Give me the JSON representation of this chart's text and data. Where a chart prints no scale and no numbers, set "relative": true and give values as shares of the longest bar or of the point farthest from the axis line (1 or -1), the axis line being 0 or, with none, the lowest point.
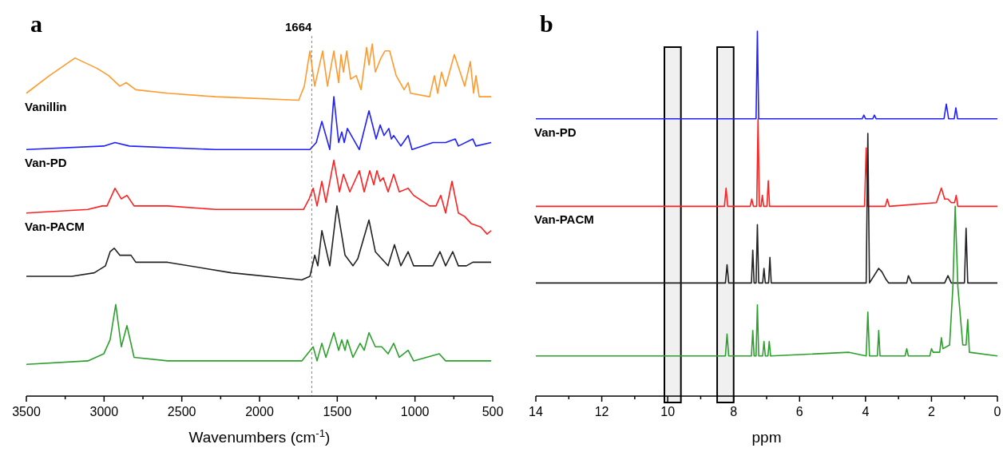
{
  "chart_data": [
    {
      "type": "line",
      "title": "a",
      "xlabel": "Wavenumbers (cm$^{-1}$)",
      "relative": true,
      "tick_labels": "x",
      "xlim": [
        3500,
        500
      ],
      "xticks": [
        3500,
        {
          "value": 3250,
          "label": null
        },
        3000,
        {
          "value": 2750,
          "label": null
        },
        2500,
        {
          "value": 2250,
          "label": null
        },
        2000,
        {
          "value": 1750,
          "label": null
        },
        1500,
        {
          "value": 1250,
          "label": null
        },
        1000,
        {
          "value": 750,
          "label": null
        },
        500
      ],
      "ref_lines": [
        {
          "axis": "x",
          "value": 1664,
          "label": "1664",
          "color": "#808080",
          "line_style": "dashed"
        }
      ],
      "series": [
        {
          "name": "Vanillin",
          "color": "#ff9a2e",
          "x": [
            3500,
            3351,
            3187,
            3043,
            2971,
            2899,
            2858,
            2796,
            2591,
            2283,
            1748,
            1712,
            1676,
            1645,
            1594,
            1563,
            1522,
            1491,
            1476,
            1460,
            1439,
            1414,
            1378,
            1347,
            1311,
            1296,
            1275,
            1255,
            1219,
            1193,
            1163,
            1121,
            1070,
            1044,
            1029,
            906,
            875,
            854,
            829,
            803,
            747,
            680,
            644,
            623,
            608,
            587,
            510
          ],
          "values": [
            0.86,
            0.91,
            0.96,
            0.93,
            0.91,
            0.88,
            0.89,
            0.87,
            0.86,
            0.85,
            0.84,
            0.88,
            0.98,
            0.88,
            0.98,
            0.88,
            0.98,
            0.89,
            0.97,
            0.92,
            0.98,
            0.9,
            0.91,
            0.87,
            0.99,
            0.94,
            1.0,
            0.92,
            0.96,
            0.98,
            0.98,
            0.91,
            0.87,
            0.89,
            0.86,
            0.85,
            0.91,
            0.86,
            0.92,
            0.88,
            0.97,
            0.88,
            0.95,
            0.86,
            0.91,
            0.85,
            0.85
          ]
        },
        {
          "name": "Van-PD",
          "color": "#1f1fff",
          "x": [
            3500,
            3002,
            2930,
            2837,
            2283,
            1676,
            1635,
            1599,
            1548,
            1522,
            1491,
            1471,
            1455,
            1435,
            1358,
            1296,
            1250,
            1224,
            1199,
            1168,
            1152,
            1137,
            1091,
            1044,
            1019,
            885,
            803,
            741,
            721,
            628,
            608,
            510
          ],
          "values": [
            0.7,
            0.71,
            0.72,
            0.71,
            0.7,
            0.7,
            0.72,
            0.78,
            0.7,
            0.85,
            0.72,
            0.75,
            0.72,
            0.76,
            0.7,
            0.81,
            0.73,
            0.77,
            0.74,
            0.76,
            0.73,
            0.74,
            0.71,
            0.74,
            0.7,
            0.72,
            0.72,
            0.73,
            0.71,
            0.73,
            0.71,
            0.72
          ]
        },
        {
          "name": "Van-PACM",
          "color": "#ff2020",
          "x": [
            3500,
            3104,
            3012,
            2981,
            2930,
            2889,
            2853,
            2807,
            2591,
            2283,
            1717,
            1681,
            1655,
            1630,
            1599,
            1573,
            1522,
            1486,
            1460,
            1419,
            1358,
            1327,
            1291,
            1265,
            1245,
            1224,
            1204,
            1173,
            1137,
            1101,
            1044,
            1009,
            906,
            865,
            834,
            803,
            762,
            721,
            680,
            639,
            577,
            536,
            510
          ],
          "values": [
            0.52,
            0.53,
            0.54,
            0.54,
            0.59,
            0.56,
            0.57,
            0.54,
            0.54,
            0.53,
            0.53,
            0.56,
            0.59,
            0.54,
            0.61,
            0.55,
            0.67,
            0.58,
            0.63,
            0.58,
            0.64,
            0.58,
            0.64,
            0.6,
            0.64,
            0.61,
            0.62,
            0.58,
            0.63,
            0.58,
            0.59,
            0.57,
            0.54,
            0.54,
            0.57,
            0.52,
            0.61,
            0.52,
            0.51,
            0.49,
            0.48,
            0.46,
            0.47
          ]
        },
        {
          "color": "#222222",
          "x": [
            3500,
            3207,
            3063,
            2991,
            2961,
            2935,
            2899,
            2827,
            2796,
            2591,
            2180,
            1728,
            1676,
            1645,
            1625,
            1599,
            1548,
            1502,
            1450,
            1399,
            1368,
            1296,
            1255,
            1214,
            1173,
            1132,
            1091,
            1044,
            1009,
            885,
            839,
            803,
            757,
            721,
            669,
            628,
            510
          ],
          "values": [
            0.34,
            0.34,
            0.35,
            0.37,
            0.41,
            0.42,
            0.4,
            0.4,
            0.38,
            0.38,
            0.35,
            0.33,
            0.34,
            0.4,
            0.37,
            0.47,
            0.37,
            0.54,
            0.4,
            0.37,
            0.39,
            0.5,
            0.41,
            0.39,
            0.37,
            0.43,
            0.37,
            0.41,
            0.37,
            0.37,
            0.41,
            0.37,
            0.41,
            0.37,
            0.37,
            0.38,
            0.38
          ]
        },
        {
          "color": "#2ca02c",
          "x": [
            3500,
            3104,
            3002,
            2961,
            2925,
            2889,
            2853,
            2807,
            2591,
            2078,
            1728,
            1655,
            1630,
            1599,
            1573,
            1522,
            1491,
            1471,
            1450,
            1435,
            1399,
            1353,
            1327,
            1296,
            1255,
            1214,
            1173,
            1137,
            1101,
            1044,
            1009,
            844,
            803,
            510
          ],
          "values": [
            0.09,
            0.1,
            0.12,
            0.16,
            0.26,
            0.14,
            0.2,
            0.11,
            0.1,
            0.1,
            0.1,
            0.14,
            0.1,
            0.15,
            0.11,
            0.18,
            0.13,
            0.16,
            0.13,
            0.16,
            0.11,
            0.15,
            0.13,
            0.18,
            0.14,
            0.14,
            0.12,
            0.15,
            0.11,
            0.13,
            0.1,
            0.12,
            0.1,
            0.1
          ]
        }
      ]
    },
    {
      "type": "line",
      "title": "b",
      "xlabel": "ppm",
      "relative": true,
      "tick_labels": "x",
      "xlim": [
        14,
        0
      ],
      "xticks": [
        14,
        {
          "value": 13,
          "label": null
        },
        12,
        {
          "value": 11,
          "label": null
        },
        10,
        {
          "value": 9,
          "label": null
        },
        8,
        {
          "value": 7,
          "label": null
        },
        6,
        {
          "value": 5,
          "label": null
        },
        4,
        {
          "value": 3,
          "label": null
        },
        2,
        {
          "value": 1,
          "label": null
        },
        0
      ],
      "bands": [
        {
          "axis": "x",
          "from": 10.1,
          "to": 9.6,
          "color": "#000000"
        },
        {
          "axis": "x",
          "from": 8.5,
          "to": 8.0,
          "color": "#000000"
        }
      ],
      "series": [
        {
          "name": "Van-PD",
          "color": "#1f1fff",
          "x": [
            14,
            7.32,
            7.28,
            7.24,
            4.1,
            4.05,
            4.0,
            3.78,
            3.73,
            3.68,
            1.62,
            1.55,
            1.48,
            1.31,
            1.26,
            1.21,
            0
          ],
          "values": [
            0.76,
            0.76,
            1.0,
            0.76,
            0.76,
            0.77,
            0.76,
            0.76,
            0.77,
            0.76,
            0.76,
            0.8,
            0.76,
            0.76,
            0.79,
            0.76,
            0.76
          ]
        },
        {
          "name": "Van-PACM",
          "color": "#ff2020",
          "x": [
            14,
            8.28,
            8.23,
            8.18,
            7.5,
            7.45,
            7.4,
            7.3,
            7.26,
            7.22,
            7.17,
            7.13,
            7.09,
            6.99,
            6.95,
            6.91,
            4.03,
            3.98,
            3.93,
            3.4,
            3.34,
            3.28,
            1.85,
            1.7,
            1.6,
            1.5,
            1.4,
            1.3,
            1.25,
            1.2,
            0
          ],
          "values": [
            0.52,
            0.52,
            0.57,
            0.52,
            0.52,
            0.54,
            0.52,
            0.52,
            0.76,
            0.52,
            0.52,
            0.55,
            0.52,
            0.52,
            0.59,
            0.52,
            0.52,
            0.68,
            0.52,
            0.52,
            0.54,
            0.52,
            0.53,
            0.57,
            0.54,
            0.54,
            0.53,
            0.53,
            0.55,
            0.52,
            0.52
          ]
        },
        {
          "color": "#222222",
          "x": [
            14,
            8.25,
            8.2,
            8.15,
            7.46,
            7.42,
            7.38,
            7.32,
            7.28,
            7.24,
            7.12,
            7.08,
            7.04,
            6.94,
            6.9,
            6.86,
            3.98,
            3.93,
            3.88,
            3.6,
            3.5,
            3.38,
            3.3,
            2.75,
            2.7,
            2.6,
            1.6,
            1.5,
            1.4,
            1.0,
            0.95,
            0.9,
            0
          ],
          "values": [
            0.31,
            0.31,
            0.36,
            0.31,
            0.31,
            0.4,
            0.31,
            0.31,
            0.47,
            0.31,
            0.31,
            0.35,
            0.31,
            0.31,
            0.38,
            0.31,
            0.31,
            0.72,
            0.31,
            0.35,
            0.34,
            0.32,
            0.31,
            0.31,
            0.33,
            0.31,
            0.31,
            0.33,
            0.31,
            0.31,
            0.46,
            0.31,
            0.31
          ]
        },
        {
          "color": "#2ca02c",
          "x": [
            14,
            8.25,
            8.2,
            8.15,
            7.46,
            7.42,
            7.38,
            7.32,
            7.28,
            7.24,
            7.12,
            7.08,
            7.04,
            6.96,
            6.92,
            6.88,
            4.5,
            3.98,
            3.93,
            3.88,
            3.64,
            3.6,
            3.56,
            2.8,
            2.75,
            2.7,
            2.05,
            2.0,
            1.95,
            1.75,
            1.7,
            1.65,
            1.45,
            1.35,
            1.28,
            1.2,
            1.05,
            0.95,
            0.9,
            0.85,
            0
          ],
          "values": [
            0.11,
            0.11,
            0.17,
            0.11,
            0.11,
            0.18,
            0.11,
            0.11,
            0.25,
            0.11,
            0.11,
            0.15,
            0.11,
            0.11,
            0.15,
            0.11,
            0.12,
            0.11,
            0.23,
            0.11,
            0.11,
            0.18,
            0.11,
            0.11,
            0.13,
            0.11,
            0.11,
            0.13,
            0.12,
            0.12,
            0.16,
            0.13,
            0.14,
            0.3,
            0.52,
            0.3,
            0.14,
            0.14,
            0.21,
            0.12,
            0.11
          ]
        }
      ]
    }
  ]
}
